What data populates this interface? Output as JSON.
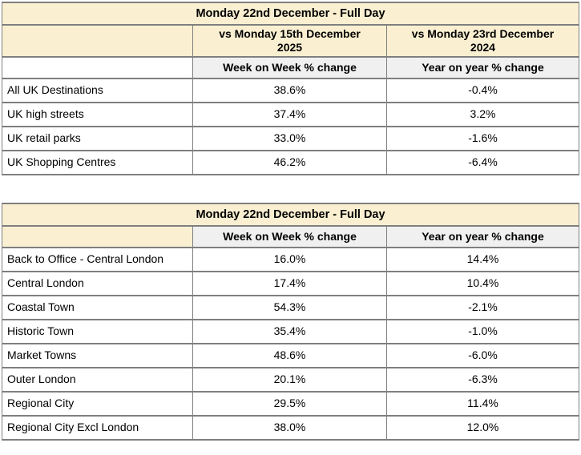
{
  "colors": {
    "header_cream": "#faf0d1",
    "header_gray": "#f0f0f0",
    "border_gray": "#7f7f7f",
    "text": "#000000",
    "background": "#ffffff"
  },
  "tables": [
    {
      "title": "Monday 22nd December - Full Day",
      "comparison_headers": [
        "vs Monday 15th December 2025",
        "vs Monday 23rd December 2024"
      ],
      "metric_headers": [
        "Week on Week % change",
        "Year on year % change"
      ],
      "rows": [
        [
          "All UK Destinations",
          "38.6%",
          "-0.4%"
        ],
        [
          "UK high streets",
          "37.4%",
          "3.2%"
        ],
        [
          "UK retail parks",
          "33.0%",
          "-1.6%"
        ],
        [
          "UK Shopping Centres",
          "46.2%",
          "-6.4%"
        ]
      ]
    },
    {
      "title": "Monday 22nd December - Full Day",
      "metric_headers": [
        "Week on Week % change",
        "Year on year % change"
      ],
      "rows": [
        [
          "Back to Office - Central London",
          "16.0%",
          "14.4%"
        ],
        [
          "Central London",
          "17.4%",
          "10.4%"
        ],
        [
          "Coastal Town",
          "54.3%",
          "-2.1%"
        ],
        [
          "Historic Town",
          "35.4%",
          "-1.0%"
        ],
        [
          "Market Towns",
          "48.6%",
          "-6.0%"
        ],
        [
          "Outer London",
          "20.1%",
          "-6.3%"
        ],
        [
          "Regional City",
          "29.5%",
          "11.4%"
        ],
        [
          "Regional City Excl London",
          "38.0%",
          "12.0%"
        ]
      ]
    }
  ],
  "chart_data": [
    {
      "type": "table",
      "title": "Monday 22nd December - Full Day",
      "comparison_labels": [
        "vs Monday 15th December 2025",
        "vs Monday 23rd December 2024"
      ],
      "columns": [
        "Week on Week % change",
        "Year on year % change"
      ],
      "categories": [
        "All UK Destinations",
        "UK high streets",
        "UK retail parks",
        "UK Shopping Centres"
      ],
      "series": [
        {
          "name": "Week on Week % change",
          "values": [
            38.6,
            37.4,
            33.0,
            46.2
          ]
        },
        {
          "name": "Year on year % change",
          "values": [
            -0.4,
            3.2,
            -1.6,
            -6.4
          ]
        }
      ]
    },
    {
      "type": "table",
      "title": "Monday 22nd December - Full Day",
      "columns": [
        "Week on Week % change",
        "Year on year % change"
      ],
      "categories": [
        "Back to Office - Central London",
        "Central London",
        "Coastal Town",
        "Historic Town",
        "Market Towns",
        "Outer London",
        "Regional City",
        "Regional City Excl London"
      ],
      "series": [
        {
          "name": "Week on Week % change",
          "values": [
            16.0,
            17.4,
            54.3,
            35.4,
            48.6,
            20.1,
            29.5,
            38.0
          ]
        },
        {
          "name": "Year on year % change",
          "values": [
            14.4,
            10.4,
            -2.1,
            -1.0,
            -6.0,
            -6.3,
            11.4,
            12.0
          ]
        }
      ]
    }
  ]
}
